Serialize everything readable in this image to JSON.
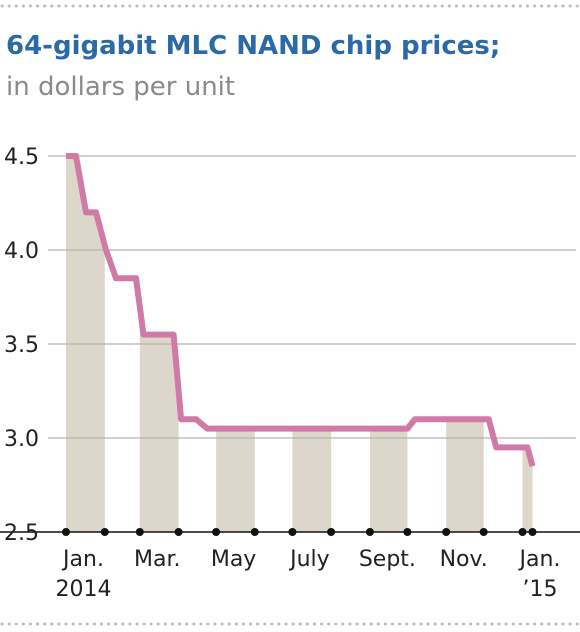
{
  "title": "64-gigabit MLC NAND chip prices;",
  "subtitle": "in dollars per unit",
  "colors": {
    "title": "#2b6aa6",
    "subtitle": "#8a8a8a",
    "line": "#d07aa8",
    "area": "#ddd6cb",
    "grid": "#b5b5b5",
    "border_dots": "#bdbdbd"
  },
  "chart_data": {
    "type": "line",
    "title": "64-gigabit MLC NAND chip prices;",
    "subtitle": "in dollars per unit",
    "xlabel": "",
    "ylabel": "",
    "ylim": [
      2.5,
      4.5
    ],
    "yticks": [
      "4.5",
      "4.0",
      "3.5",
      "3.0",
      "2.5"
    ],
    "grid": true,
    "xlim": [
      "2014-01-01",
      "2015-01-31"
    ],
    "x_tick_labels": [
      {
        "label": "Jan.\n2014",
        "date": "2014-01-15"
      },
      {
        "label": "Mar.",
        "date": "2014-03-15"
      },
      {
        "label": "May",
        "date": "2014-05-15"
      },
      {
        "label": "July",
        "date": "2014-07-15"
      },
      {
        "label": "Sept.",
        "date": "2014-09-15"
      },
      {
        "label": "Nov.",
        "date": "2014-11-15"
      },
      {
        "label": "Jan.\n’15",
        "date": "2015-01-15"
      }
    ],
    "series": [
      {
        "x": [
          "2014-01-01",
          "2014-01-09",
          "2014-01-17",
          "2014-01-25",
          "2014-02-02",
          "2014-02-10",
          "2014-02-26",
          "2014-03-04",
          "2014-03-28",
          "2014-04-03",
          "2014-04-15",
          "2014-04-24",
          "2014-04-30",
          "2014-10-01",
          "2014-10-07",
          "2014-12-05",
          "2014-12-11",
          "2015-01-05",
          "2015-01-09"
        ],
        "values": [
          4.5,
          4.5,
          4.2,
          4.2,
          4.0,
          3.85,
          3.85,
          3.55,
          3.55,
          3.1,
          3.1,
          3.05,
          3.05,
          3.05,
          3.1,
          3.1,
          2.95,
          2.95,
          2.85
        ]
      }
    ],
    "shaded_months": [
      "2014-01",
      "2014-03",
      "2014-05",
      "2014-07",
      "2014-09",
      "2014-11",
      "2015-01"
    ]
  }
}
